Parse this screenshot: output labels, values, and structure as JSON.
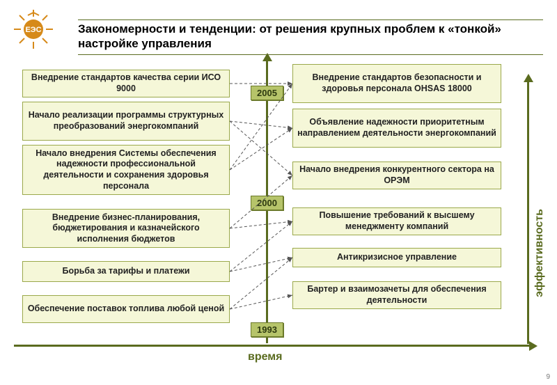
{
  "title": "Закономерности и тенденции: от решения крупных проблем к «тонкой» настройке управления",
  "pageNum": "9",
  "timeLabel": "время",
  "effLabel": "эффективность",
  "years": {
    "y1993": "1993",
    "y2000": "2000",
    "y2005": "2005"
  },
  "boxes": {
    "l1": "Внедрение стандартов качества серии ИСО 9000",
    "l2": "Начало реализации программы структурных преобразований энергокомпаний",
    "l3": "Начало внедрения Системы обеспечения надежности профессиональной деятельности и сохранения здоровья персонала",
    "l4": "Внедрение бизнес-планирования, бюджетирования и казначейского исполнения бюджетов",
    "l5": "Борьба за тарифы и платежи",
    "l6": "Обеспечение поставок топлива любой ценой",
    "r1": "Внедрение стандартов безопасности и здоровья персонала OHSAS 18000",
    "r2": "Объявление надежности приоритетным направлением деятельности энергокомпаний",
    "r3": "Начало внедрения конкурентного сектора на ОРЭМ",
    "r4": "Повышение требований к высшему менеджменту компаний",
    "r5": "Антикризисное управление",
    "r6": "Бартер и взаимозачеты для обеспечения деятельности"
  },
  "layout": {
    "leftX": 32,
    "leftW": 298,
    "rightX": 420,
    "rightW": 300,
    "centerX": 382,
    "effX": 757,
    "tops": {
      "l1": 100,
      "l1h": 40,
      "l2": 146,
      "l2h": 56,
      "l3": 208,
      "l3h": 72,
      "l4": 300,
      "l4h": 56,
      "l5": 375,
      "l5h": 30,
      "l6": 424,
      "l6h": 40,
      "r1": 92,
      "r1h": 56,
      "r2": 156,
      "r2h": 56,
      "r3": 232,
      "r3h": 40,
      "r4": 298,
      "r4h": 40,
      "r5": 356,
      "r5h": 28,
      "r6": 404,
      "r6h": 40
    },
    "yearTops": {
      "y2005": 123,
      "y2000": 281,
      "y1993": 463
    }
  },
  "connections": [
    {
      "fromRef": "tops.l1",
      "fhRef": "tops.l1h",
      "toRef": "tops.r1",
      "thRef": "tops.r1h"
    },
    {
      "fromRef": "tops.l2",
      "fhRef": "tops.l2h",
      "toRef": "tops.r2",
      "thRef": "tops.r2h"
    },
    {
      "fromRef": "tops.l2",
      "fhRef": "tops.l2h",
      "toRef": "tops.r3",
      "thRef": "tops.r3h"
    },
    {
      "fromRef": "tops.l3",
      "fhRef": "tops.l3h",
      "toRef": "tops.r1",
      "thRef": "tops.r1h"
    },
    {
      "fromRef": "tops.l3",
      "fhRef": "tops.l3h",
      "toRef": "tops.r2",
      "thRef": "tops.r2h"
    },
    {
      "fromRef": "tops.l4",
      "fhRef": "tops.l4h",
      "toRef": "tops.r4",
      "thRef": "tops.r4h"
    },
    {
      "fromRef": "tops.l4",
      "fhRef": "tops.l4h",
      "toRef": "tops.r3",
      "thRef": "tops.r3h"
    },
    {
      "fromRef": "tops.l5",
      "fhRef": "tops.l5h",
      "toRef": "tops.r5",
      "thRef": "tops.r5h"
    },
    {
      "fromRef": "tops.l5",
      "fhRef": "tops.l5h",
      "toRef": "tops.r4",
      "thRef": "tops.r4h"
    },
    {
      "fromRef": "tops.l6",
      "fhRef": "tops.l6h",
      "toRef": "tops.r6",
      "thRef": "tops.r6h"
    },
    {
      "fromRef": "tops.l6",
      "fhRef": "tops.l6h",
      "toRef": "tops.r5",
      "thRef": "tops.r5h"
    }
  ],
  "colors": {
    "accent": "#5a6b1f",
    "boxFill": "#f5f7d8",
    "boxBorder": "#9aa84a",
    "yearFill": "#b6c46a"
  }
}
